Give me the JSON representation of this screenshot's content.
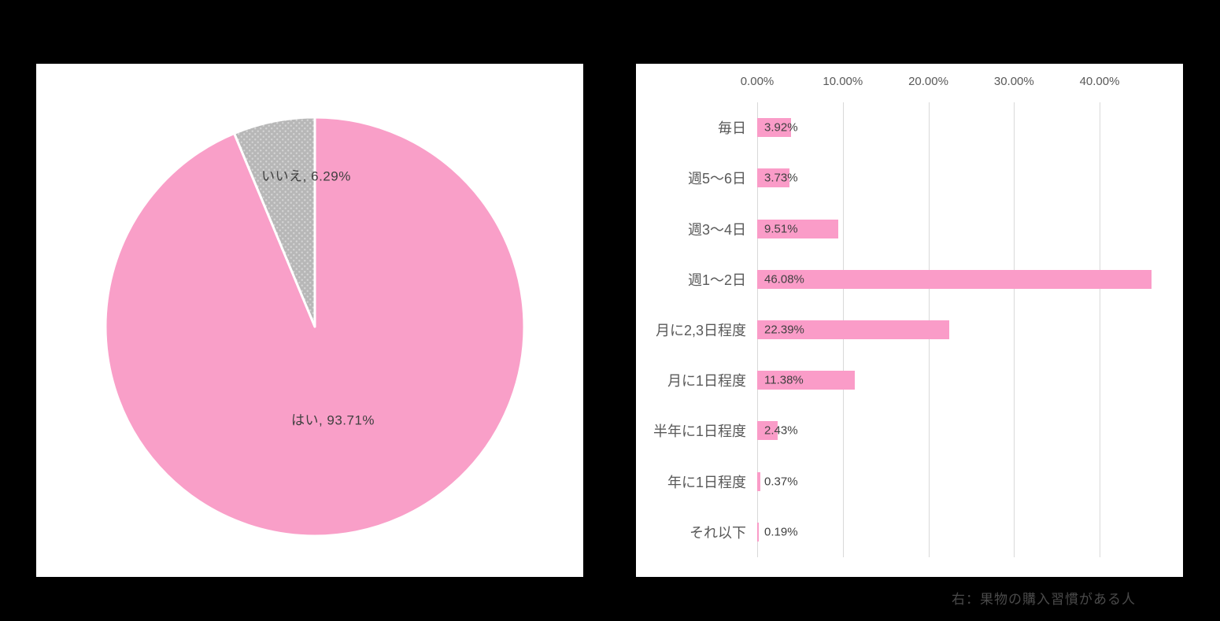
{
  "page": {
    "background": "#000000",
    "caption": "右：果物の購入習慣がある人"
  },
  "chart_data": [
    {
      "type": "pie",
      "title": "",
      "start_angle": "12-oclock",
      "direction": "clockwise",
      "separator_color": "#FFFFFF",
      "label_color": "#404040",
      "slices": [
        {
          "label": "はい",
          "value": 93.71,
          "label_text": "はい, 93.71%",
          "color": "#F99FC8"
        },
        {
          "label": "いいえ",
          "value": 6.29,
          "label_text": "いいえ, 6.29%",
          "color": "dot-pattern"
        }
      ],
      "pattern_colors": {
        "base": "#B7B7B7",
        "dot": "#D4D4D4"
      }
    },
    {
      "type": "bar",
      "orientation": "horizontal",
      "title": "",
      "bar_color": "#FA9CC8",
      "gridline_color": "#D9D9D9",
      "axis_text_color": "#595959",
      "value_label_color": "#404040",
      "grid": true,
      "xlim": [
        0,
        46.5
      ],
      "categories": [
        "毎日",
        "週5〜6日",
        "週3〜4日",
        "週1〜2日",
        "月に2,3日程度",
        "月に1日程度",
        "半年に1日程度",
        "年に1日程度",
        "それ以下"
      ],
      "values": [
        3.92,
        3.73,
        9.51,
        46.08,
        22.39,
        11.38,
        2.43,
        0.37,
        0.19
      ],
      "value_labels": [
        "3.92%",
        "3.73%",
        "9.51%",
        "46.08%",
        "22.39%",
        "11.38%",
        "2.43%",
        "0.37%",
        "0.19%"
      ],
      "ticks": [
        {
          "value": 0,
          "label": "0.00%"
        },
        {
          "value": 10,
          "label": "10.00%"
        },
        {
          "value": 20,
          "label": "20.00%"
        },
        {
          "value": 30,
          "label": "30.00%"
        },
        {
          "value": 40,
          "label": "40.00%"
        }
      ]
    }
  ]
}
